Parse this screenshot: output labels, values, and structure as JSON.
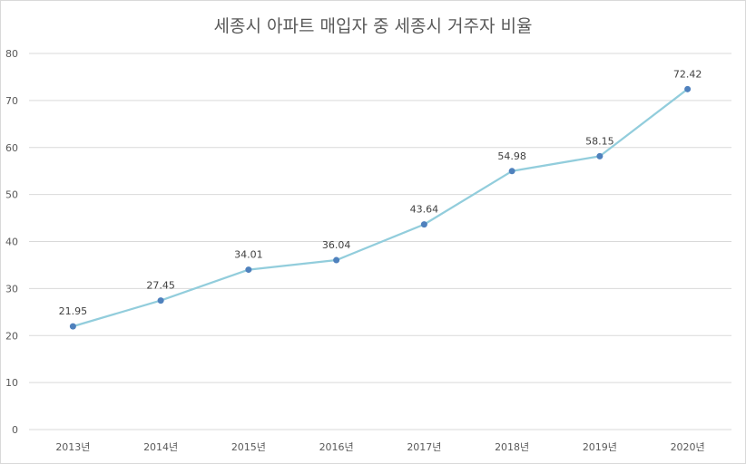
{
  "chart_data": {
    "type": "line",
    "title": "세종시 아파트 매입자 중 세종시 거주자 비율",
    "xlabel": "",
    "ylabel": "",
    "categories": [
      "2013년",
      "2014년",
      "2015년",
      "2016년",
      "2017년",
      "2018년",
      "2019년",
      "2020년"
    ],
    "series": [
      {
        "values": [
          21.95,
          27.45,
          34.01,
          36.04,
          43.64,
          54.98,
          58.15,
          72.42
        ],
        "labels": [
          "21.95",
          "27.45",
          "34.01",
          "36.04",
          "43.64",
          "54.98",
          "58.15",
          "72.42"
        ],
        "color": "#92cddc",
        "marker_color": "#4f81bd"
      }
    ],
    "ylim": [
      0,
      80
    ],
    "yticks": [
      0,
      10,
      20,
      30,
      40,
      50,
      60,
      70,
      80
    ],
    "ytick_labels": [
      "0",
      "10",
      "20",
      "30",
      "40",
      "50",
      "60",
      "70",
      "80"
    ],
    "grid": true,
    "gridline_color": "#d9d9d9",
    "legend": "none"
  }
}
